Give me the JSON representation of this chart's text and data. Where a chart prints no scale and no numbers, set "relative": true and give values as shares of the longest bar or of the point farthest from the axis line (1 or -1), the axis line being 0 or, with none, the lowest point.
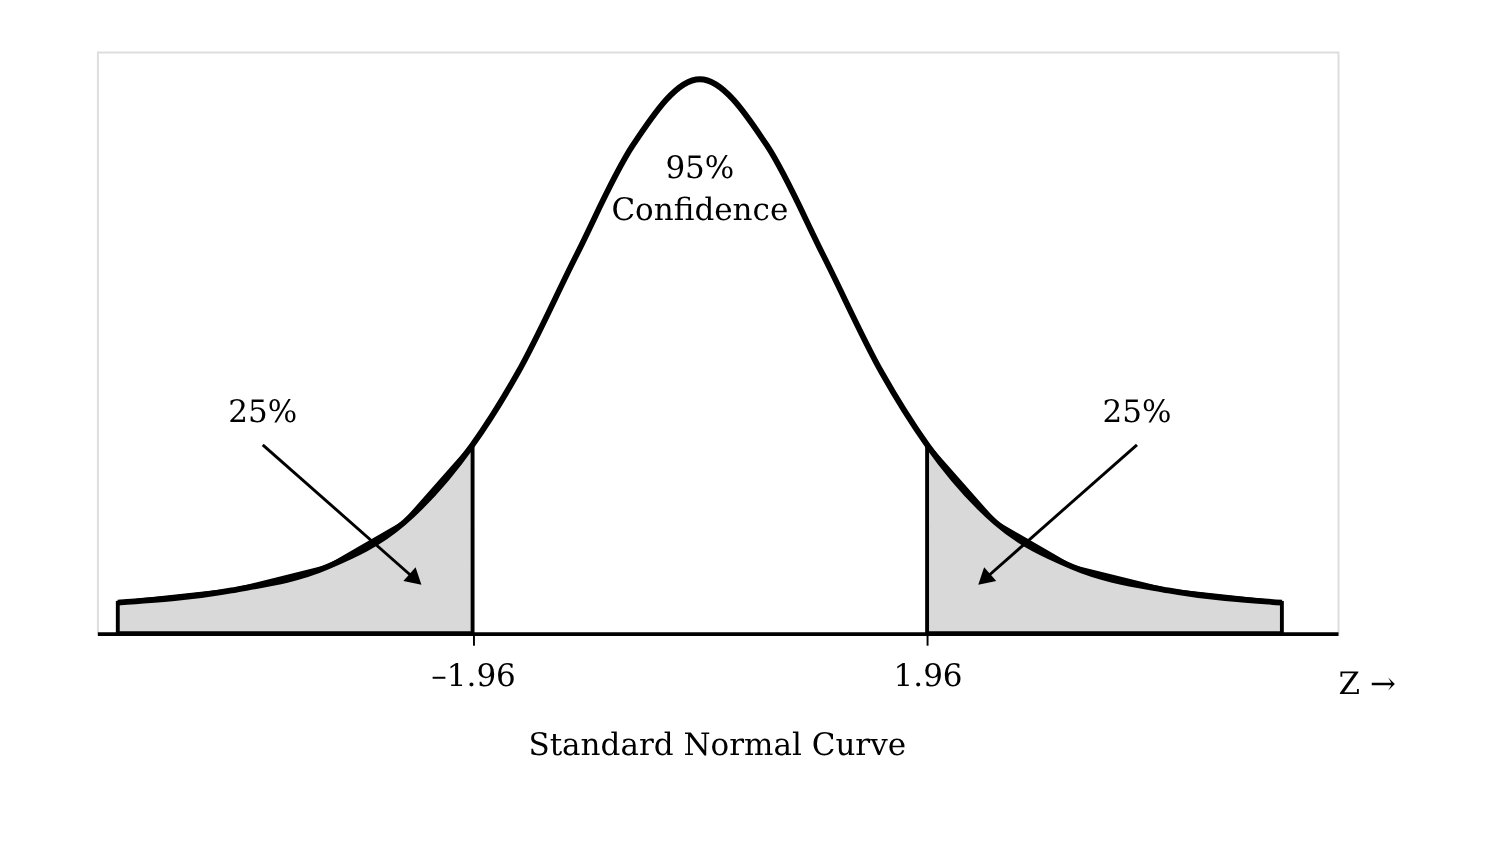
{
  "chart_data": {
    "type": "line",
    "relative": true,
    "xlim": [
      -5.2,
      5.5
    ],
    "xticks": [
      {
        "value": -1.96,
        "label": "–1.96"
      },
      {
        "value": 1.96,
        "label": "1.96"
      }
    ],
    "xlabel": "Z →",
    "grid": false,
    "series": [
      {
        "type": "area",
        "color": "#d9d9d9",
        "x": [
          -5.02,
          -4.04,
          -3.21,
          -2.55,
          -1.96
        ],
        "values": [
          0.055,
          0.077,
          0.12,
          0.2,
          0.34
        ]
      },
      {
        "type": "area",
        "color": "#d9d9d9",
        "x": [
          1.96,
          2.55,
          3.21,
          4.04,
          5.02
        ],
        "values": [
          0.34,
          0.2,
          0.12,
          0.077,
          0.055
        ]
      },
      {
        "color": "#000000",
        "x": [
          -5.02,
          -4.04,
          -3.21,
          -2.55,
          -1.96,
          -1.57,
          -1.07,
          -0.58,
          0,
          0.58,
          1.07,
          1.57,
          1.96,
          2.55,
          3.21,
          4.04,
          5.02
        ],
        "values": [
          0.055,
          0.077,
          0.12,
          0.2,
          0.34,
          0.47,
          0.68,
          0.88,
          1,
          0.88,
          0.68,
          0.47,
          0.34,
          0.2,
          0.12,
          0.077,
          0.055
        ]
      }
    ],
    "annotations": [
      {
        "text": "25%",
        "x": -2.47,
        "y": 0.1
      },
      {
        "text": "25%",
        "x": 2.47,
        "y": 0.1
      },
      "95% Confidence",
      "Standard Normal Curve"
    ]
  }
}
